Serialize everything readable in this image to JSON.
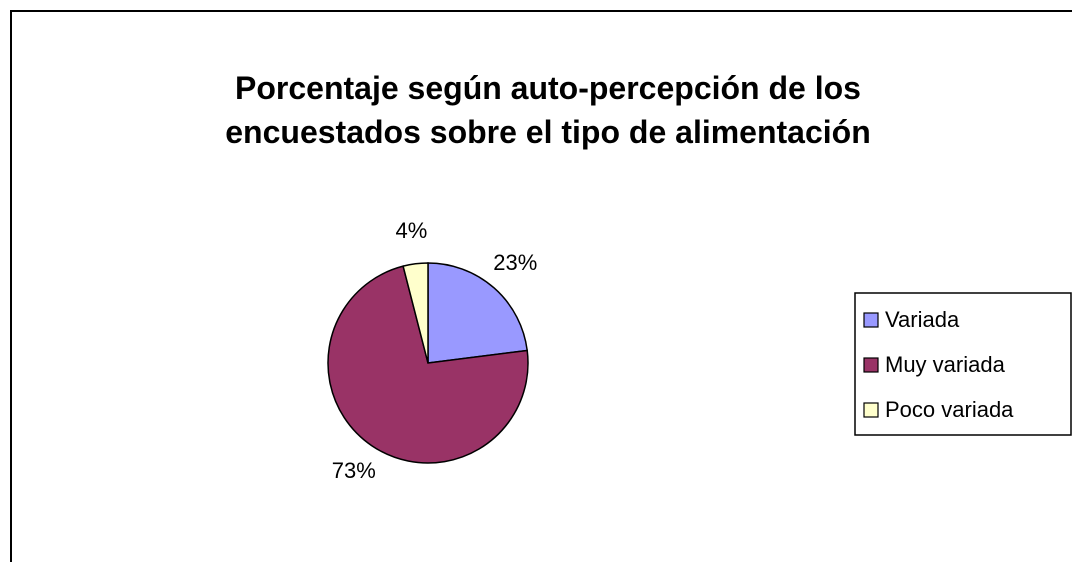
{
  "chart_data": {
    "type": "pie",
    "title": "Porcentaje según auto-percepción de los encuestados sobre el tipo de alimentación",
    "categories": [
      "Variada",
      "Muy variada",
      "Poco variada"
    ],
    "values": [
      23,
      73,
      4
    ],
    "value_labels": [
      "23%",
      "73%",
      "4%"
    ],
    "colors": [
      "#9999ff",
      "#993366",
      "#ffffcc"
    ],
    "legend": "right"
  }
}
